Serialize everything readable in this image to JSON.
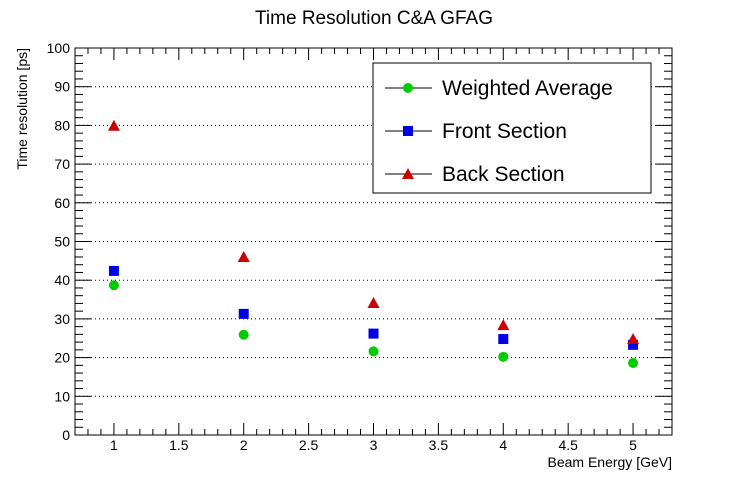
{
  "chart_data": {
    "type": "scatter",
    "title": "Time Resolution C&A GFAG",
    "xlabel": "Beam Energy [GeV]",
    "ylabel": "Time resolution [ps]",
    "xlim": [
      0.7,
      5.3
    ],
    "ylim": [
      0,
      100
    ],
    "x_major_ticks": [
      1,
      1.5,
      2,
      2.5,
      3,
      3.5,
      4,
      4.5,
      5
    ],
    "x_tick_labels": [
      "1",
      "1.5",
      "2",
      "2.5",
      "3",
      "3.5",
      "4",
      "4.5",
      "5"
    ],
    "y_major_ticks": [
      0,
      10,
      20,
      30,
      40,
      50,
      60,
      70,
      80,
      90,
      100
    ],
    "y_tick_labels": [
      "0",
      "10",
      "20",
      "30",
      "40",
      "50",
      "60",
      "70",
      "80",
      "90",
      "100"
    ],
    "grid": "horizontal dotted",
    "legend_position": "top-right",
    "series": [
      {
        "name": "Weighted Average",
        "marker": "circle",
        "color": "#00cc00",
        "x": [
          1,
          2,
          3,
          4,
          5
        ],
        "y": [
          38.7,
          25.9,
          21.6,
          20.2,
          18.6
        ]
      },
      {
        "name": "Front Section",
        "marker": "square",
        "color": "#0000e6",
        "x": [
          1,
          2,
          3,
          4,
          5
        ],
        "y": [
          42.4,
          31.3,
          26.2,
          24.8,
          23.3
        ]
      },
      {
        "name": "Back Section",
        "marker": "triangle",
        "color": "#cc0000",
        "x": [
          1,
          2,
          3,
          4,
          5
        ],
        "y": [
          79.9,
          46.0,
          34.1,
          28.4,
          24.8
        ]
      }
    ]
  }
}
